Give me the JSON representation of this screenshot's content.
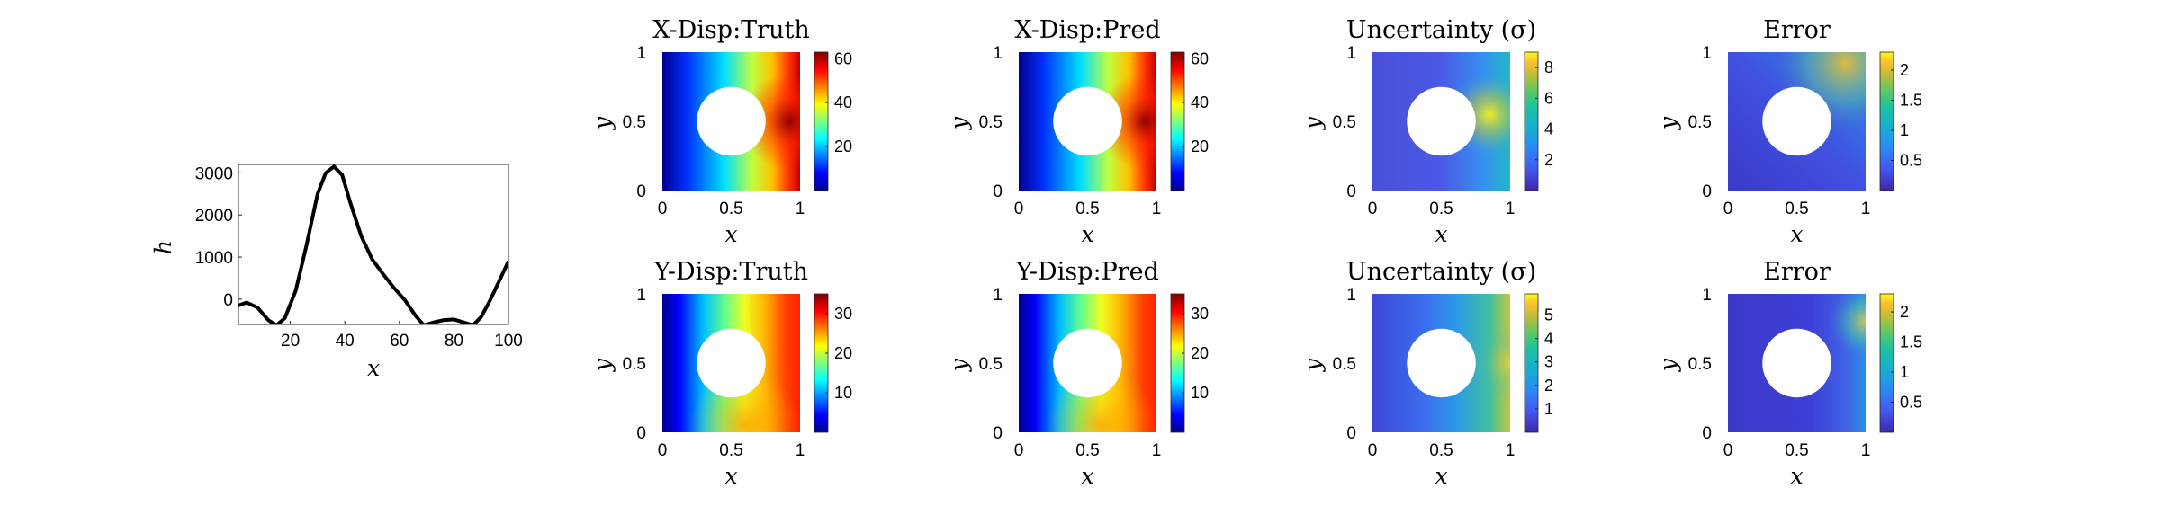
{
  "chart_data": [
    {
      "type": "line",
      "title": "",
      "xlabel": "x",
      "ylabel": "h",
      "xlim": [
        1,
        100
      ],
      "ylim": [
        -600,
        3200
      ],
      "xticks": [
        "20",
        "40",
        "60",
        "80",
        "100"
      ],
      "yticks": [
        "0",
        "1000",
        "2000",
        "3000"
      ],
      "color": "#000000",
      "x": [
        1,
        4,
        8,
        12,
        15,
        18,
        22,
        26,
        30,
        33,
        36,
        39,
        42,
        46,
        50,
        54,
        58,
        62,
        66,
        69,
        72,
        76,
        80,
        84,
        87,
        90,
        93,
        96,
        100
      ],
      "y": [
        -150,
        -80,
        -200,
        -500,
        -620,
        -450,
        200,
        1300,
        2500,
        3000,
        3150,
        2950,
        2300,
        1500,
        950,
        600,
        270,
        -20,
        -400,
        -620,
        -560,
        -500,
        -480,
        -560,
        -620,
        -420,
        -60,
        350,
        900
      ]
    },
    {
      "type": "heatmap",
      "title": "X-Disp:Truth",
      "xlabel": "x",
      "ylabel": "y",
      "xlim": [
        0,
        1
      ],
      "ylim": [
        0,
        1
      ],
      "xticks": [
        "0",
        "0.5",
        "1"
      ],
      "yticks": [
        "0",
        "0.5",
        "1"
      ],
      "colormap": "jet",
      "clim": [
        0,
        63
      ],
      "colorbar_ticks": [
        "20",
        "40",
        "60"
      ],
      "hole": {
        "center": [
          0.5,
          0.5
        ],
        "radius": 0.25
      },
      "field": "x_displacement_truth"
    },
    {
      "type": "heatmap",
      "title": "X-Disp:Pred",
      "xlabel": "x",
      "ylabel": "y",
      "xlim": [
        0,
        1
      ],
      "ylim": [
        0,
        1
      ],
      "xticks": [
        "0",
        "0.5",
        "1"
      ],
      "yticks": [
        "0",
        "0.5",
        "1"
      ],
      "colormap": "jet",
      "clim": [
        0,
        63
      ],
      "colorbar_ticks": [
        "20",
        "40",
        "60"
      ],
      "hole": {
        "center": [
          0.5,
          0.5
        ],
        "radius": 0.25
      },
      "field": "x_displacement_pred"
    },
    {
      "type": "heatmap",
      "title": "Uncertainty (σ)",
      "xlabel": "x",
      "ylabel": "y",
      "xlim": [
        0,
        1
      ],
      "ylim": [
        0,
        1
      ],
      "xticks": [
        "0",
        "0.5",
        "1"
      ],
      "yticks": [
        "0",
        "0.5",
        "1"
      ],
      "colormap": "parula",
      "clim": [
        0,
        9
      ],
      "colorbar_ticks": [
        "2",
        "4",
        "6",
        "8"
      ],
      "hole": {
        "center": [
          0.5,
          0.5
        ],
        "radius": 0.25
      },
      "field": "x_uncertainty"
    },
    {
      "type": "heatmap",
      "title": "Error",
      "xlabel": "x",
      "ylabel": "y",
      "xlim": [
        0,
        1
      ],
      "ylim": [
        0,
        1
      ],
      "xticks": [
        "0",
        "0.5",
        "1"
      ],
      "yticks": [
        "0",
        "0.5",
        "1"
      ],
      "colormap": "parula",
      "clim": [
        0,
        2.3
      ],
      "colorbar_ticks": [
        "0.5",
        "1",
        "1.5",
        "2"
      ],
      "hole": {
        "center": [
          0.5,
          0.5
        ],
        "radius": 0.25
      },
      "field": "x_error"
    },
    {
      "type": "heatmap",
      "title": "Y-Disp:Truth",
      "xlabel": "x",
      "ylabel": "y",
      "xlim": [
        0,
        1
      ],
      "ylim": [
        0,
        1
      ],
      "xticks": [
        "0",
        "0.5",
        "1"
      ],
      "yticks": [
        "0",
        "0.5",
        "1"
      ],
      "colormap": "jet",
      "clim": [
        0,
        35
      ],
      "colorbar_ticks": [
        "10",
        "20",
        "30"
      ],
      "hole": {
        "center": [
          0.5,
          0.5
        ],
        "radius": 0.25
      },
      "field": "y_displacement_truth"
    },
    {
      "type": "heatmap",
      "title": "Y-Disp:Pred",
      "xlabel": "x",
      "ylabel": "y",
      "xlim": [
        0,
        1
      ],
      "ylim": [
        0,
        1
      ],
      "xticks": [
        "0",
        "0.5",
        "1"
      ],
      "yticks": [
        "0",
        "0.5",
        "1"
      ],
      "colormap": "jet",
      "clim": [
        0,
        35
      ],
      "colorbar_ticks": [
        "10",
        "20",
        "30"
      ],
      "hole": {
        "center": [
          0.5,
          0.5
        ],
        "radius": 0.25
      },
      "field": "y_displacement_pred"
    },
    {
      "type": "heatmap",
      "title": "Uncertainty (σ)",
      "xlabel": "x",
      "ylabel": "y",
      "xlim": [
        0,
        1
      ],
      "ylim": [
        0,
        1
      ],
      "xticks": [
        "0",
        "0.5",
        "1"
      ],
      "yticks": [
        "0",
        "0.5",
        "1"
      ],
      "colormap": "parula",
      "clim": [
        0,
        5.9
      ],
      "colorbar_ticks": [
        "1",
        "2",
        "3",
        "4",
        "5"
      ],
      "hole": {
        "center": [
          0.5,
          0.5
        ],
        "radius": 0.25
      },
      "field": "y_uncertainty"
    },
    {
      "type": "heatmap",
      "title": "Error",
      "xlabel": "x",
      "ylabel": "y",
      "xlim": [
        0,
        1
      ],
      "ylim": [
        0,
        1
      ],
      "xticks": [
        "0",
        "0.5",
        "1"
      ],
      "yticks": [
        "0",
        "0.5",
        "1"
      ],
      "colormap": "parula",
      "clim": [
        0,
        2.3
      ],
      "colorbar_ticks": [
        "0.5",
        "1",
        "1.5",
        "2"
      ],
      "hole": {
        "center": [
          0.5,
          0.5
        ],
        "radius": 0.25
      },
      "field": "y_error"
    }
  ]
}
